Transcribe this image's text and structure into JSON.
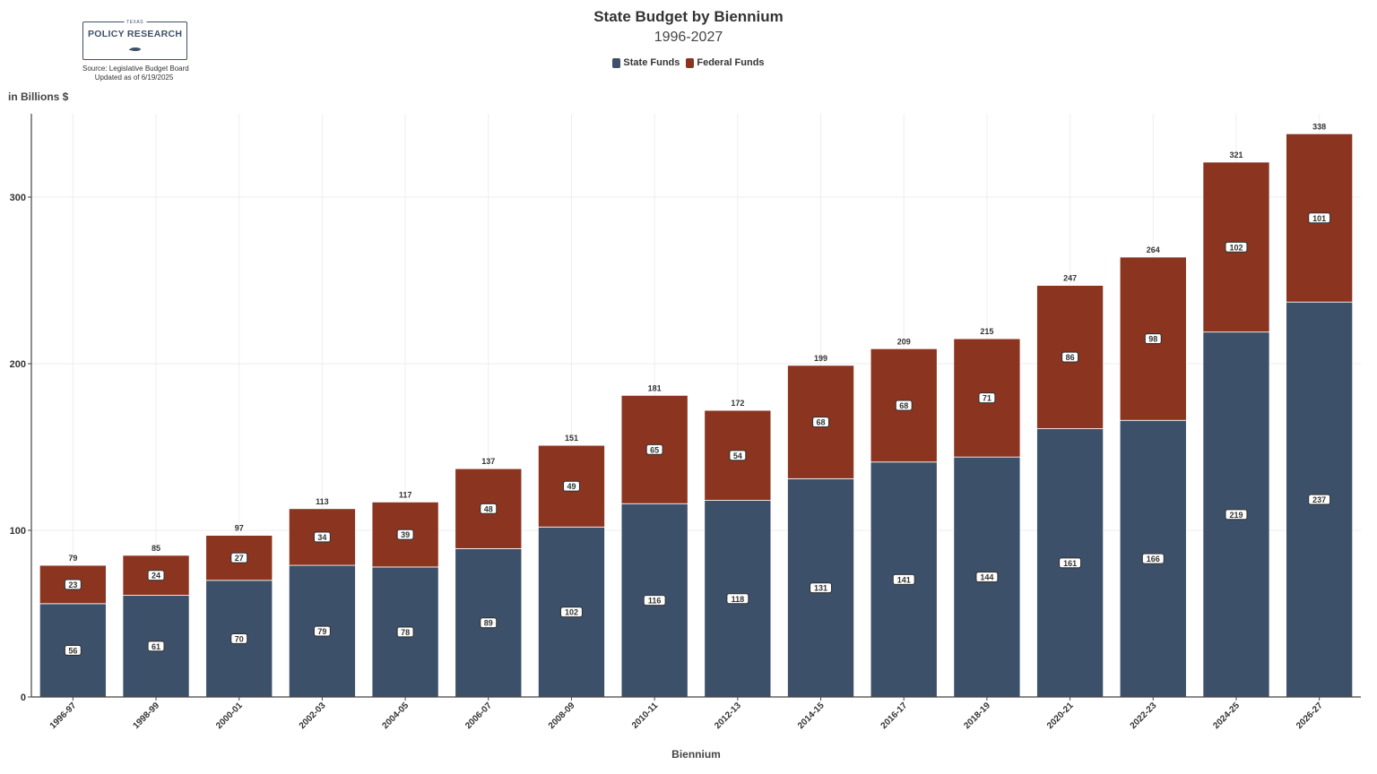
{
  "header": {
    "logo_small": "TEXAS",
    "logo_name": "POLICY RESEARCH",
    "source": "Source: Legislative Budget Board",
    "updated": "Updated as of 6/19/2025"
  },
  "colors": {
    "state_funds": "#3d5069",
    "federal_funds": "#8b3420",
    "grid": "#eeeeee",
    "axis": "#444444"
  },
  "chart_data": {
    "type": "bar",
    "stacked": true,
    "title": "State Budget by Biennium",
    "subtitle": "1996-2027",
    "xlabel": "Biennium",
    "ylabel": "in Billions $",
    "ylim": [
      0,
      350
    ],
    "yticks": [
      0,
      100,
      200,
      300
    ],
    "grid": true,
    "legend_placement": "top-center",
    "categories": [
      "1996-97",
      "1998-99",
      "2000-01",
      "2002-03",
      "2004-05",
      "2006-07",
      "2008-09",
      "2010-11",
      "2012-13",
      "2014-15",
      "2016-17",
      "2018-19",
      "2020-21",
      "2022-23",
      "2024-25",
      "2026-27"
    ],
    "series": [
      {
        "name": "State Funds",
        "values": [
          56,
          61,
          70,
          79,
          78,
          89,
          102,
          116,
          118,
          131,
          141,
          144,
          161,
          166,
          219,
          237
        ]
      },
      {
        "name": "Federal Funds",
        "values": [
          23,
          24,
          27,
          34,
          39,
          48,
          49,
          65,
          54,
          68,
          68,
          71,
          86,
          98,
          102,
          101
        ]
      }
    ],
    "totals": [
      79,
      85,
      97,
      113,
      117,
      137,
      151,
      181,
      172,
      199,
      209,
      215,
      247,
      264,
      321,
      338
    ]
  }
}
